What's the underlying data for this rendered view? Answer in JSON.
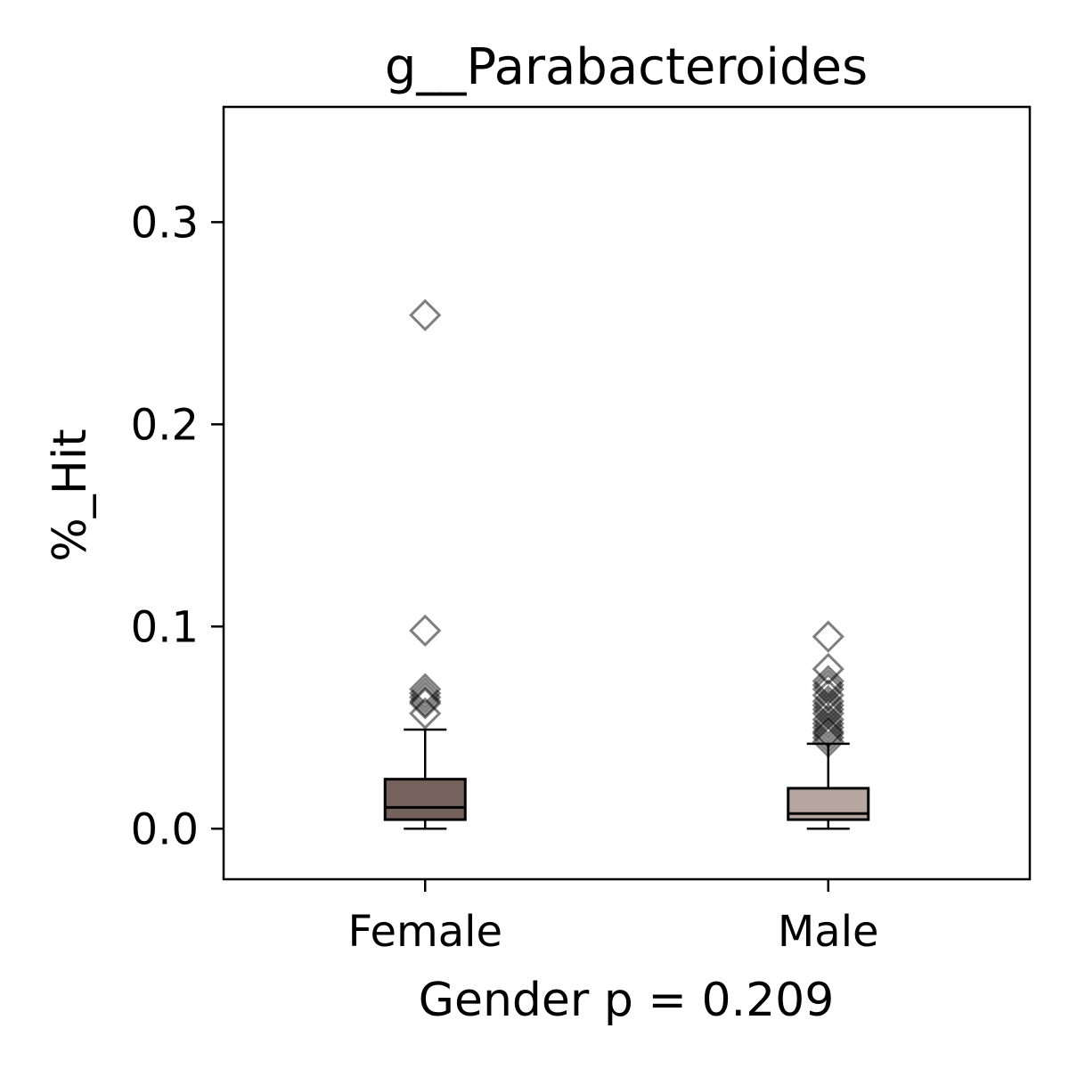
{
  "chart_data": {
    "type": "box",
    "title": "g__Parabacteroides",
    "ylabel": "%_Hit",
    "xlabel": "Gender p = 0.209",
    "ylim": [
      -0.025,
      0.357
    ],
    "yticks": [
      0.0,
      0.1,
      0.2,
      0.3
    ],
    "ytick_labels": [
      "0.0",
      "0.1",
      "0.2",
      "0.3"
    ],
    "grid": false,
    "categories": [
      "Female",
      "Male"
    ],
    "boxes": [
      {
        "category": "Female",
        "color": "#76625c",
        "whisker_low": 0.0,
        "q1": 0.0045,
        "median": 0.0105,
        "q3": 0.0245,
        "whisker_high": 0.049,
        "outliers": [
          0.254,
          0.098,
          0.069,
          0.067,
          0.065,
          0.063,
          0.062,
          0.057
        ]
      },
      {
        "category": "Male",
        "color": "#b5a69f",
        "whisker_low": 0.0,
        "q1": 0.0045,
        "median": 0.0075,
        "q3": 0.02,
        "whisker_high": 0.042,
        "outliers": [
          0.095,
          0.079,
          0.073,
          0.071,
          0.069,
          0.066,
          0.063,
          0.061,
          0.059,
          0.057,
          0.054,
          0.052,
          0.05,
          0.048,
          0.047,
          0.045,
          0.043
        ]
      }
    ]
  }
}
